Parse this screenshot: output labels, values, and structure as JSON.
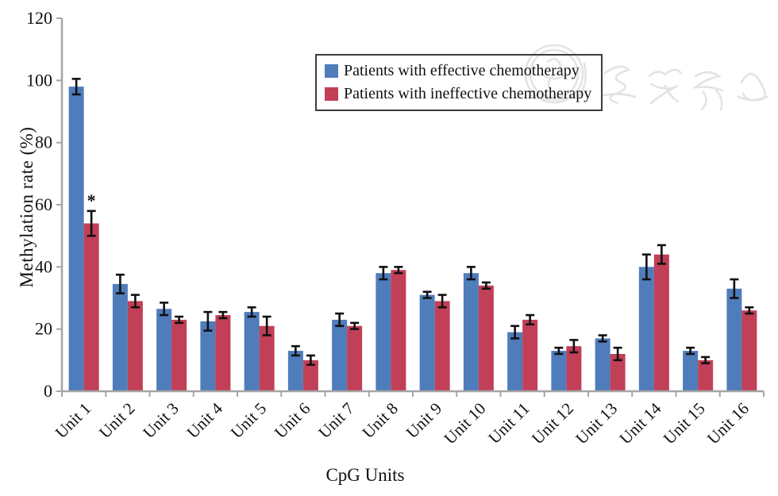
{
  "chart_data": {
    "type": "bar",
    "title": "",
    "xlabel": "CpG Units",
    "ylabel": "Methylation rate (%)",
    "ylim": [
      0,
      120
    ],
    "yticks": [
      0,
      20,
      40,
      60,
      80,
      100,
      120
    ],
    "grid": false,
    "legend_position": "top-center-boxed",
    "categories": [
      "Unit 1",
      "Unit 2",
      "Unit 3",
      "Unit 4",
      "Unit 5",
      "Unit 6",
      "Unit 7",
      "Unit 8",
      "Unit 9",
      "Unit 10",
      "Unit 11",
      "Unit 12",
      "Unit 13",
      "Unit 14",
      "Unit 15",
      "Unit 16"
    ],
    "series": [
      {
        "name": "Patients with effective chemotherapy",
        "color": "#4f7cbb",
        "values": [
          98,
          34.5,
          26.5,
          22.5,
          25.5,
          13,
          23,
          38,
          31,
          38,
          19,
          13,
          17,
          40,
          13,
          33
        ],
        "errors": [
          2.5,
          3,
          2,
          3,
          1.5,
          1.5,
          2,
          2,
          1,
          2,
          2,
          1,
          1,
          4,
          1,
          3
        ]
      },
      {
        "name": "Patients with ineffective chemotherapy",
        "color": "#c23f58",
        "values": [
          54,
          29,
          23,
          24.5,
          21,
          10,
          21,
          39,
          29,
          34,
          23,
          14.5,
          12,
          44,
          10,
          26
        ],
        "errors": [
          4,
          2,
          1,
          1,
          3,
          1.5,
          1,
          1,
          2,
          1,
          1.5,
          2,
          2,
          3,
          1,
          1
        ]
      }
    ],
    "annotations": [
      {
        "text": "*",
        "series": 1,
        "category_index": 0,
        "meaning": "significant difference marker"
      }
    ]
  },
  "watermark": {
    "name": "journal seal watermark",
    "color": "#e3e3e3"
  }
}
